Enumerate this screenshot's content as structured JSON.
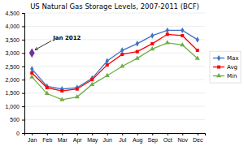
{
  "chart_data": {
    "type": "line",
    "title": "US Natural Gas Storage Levels, 2007-2011 (BCF)",
    "categories": [
      "Jan",
      "Feb",
      "Mar",
      "Apr",
      "May",
      "Jun",
      "Jul",
      "Aug",
      "Sep",
      "Oct",
      "Nov",
      "Dec"
    ],
    "series": [
      {
        "name": "Max",
        "color": "#4472C4",
        "marker": "diamond",
        "values": [
          2400,
          1750,
          1650,
          1700,
          2050,
          2700,
          3100,
          3350,
          3650,
          3850,
          3850,
          3500
        ]
      },
      {
        "name": "Avg",
        "color": "#FF0000",
        "marker": "square",
        "values": [
          2250,
          1700,
          1580,
          1650,
          2000,
          2550,
          2950,
          3050,
          3350,
          3700,
          3650,
          3100
        ]
      },
      {
        "name": "Min",
        "color": "#70AD47",
        "marker": "triangle",
        "values": [
          2100,
          1480,
          1250,
          1350,
          1820,
          2150,
          2500,
          2800,
          3150,
          3380,
          3300,
          2800
        ]
      }
    ],
    "annotations": [
      {
        "text": "Jan 2012",
        "category": "Jan",
        "value": 3000,
        "color": "#7030A0",
        "marker": "diamond"
      }
    ],
    "ylim": [
      0,
      4500
    ],
    "yticks": [
      0,
      500,
      {
        "value": 1000,
        "label": "1,000"
      },
      {
        "value": 1500,
        "label": "1,500"
      },
      {
        "value": 2000,
        "label": "2,000"
      },
      {
        "value": 2500,
        "label": "2,500"
      },
      {
        "value": 3000,
        "label": "3,000"
      },
      {
        "value": 3500,
        "label": "3,500"
      },
      {
        "value": 4000,
        "label": "4,000"
      },
      {
        "value": 4500,
        "label": "4,500"
      }
    ],
    "grid": true,
    "legend": "right"
  }
}
